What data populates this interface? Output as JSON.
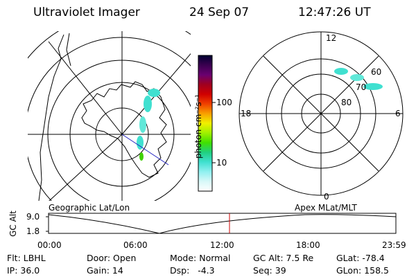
{
  "header": {
    "instrument": "Ultraviolet Imager",
    "date": "24 Sep 07",
    "time": "12:47:26 UT"
  },
  "colorbar": {
    "unit_label": "photon cm⁻²s⁻¹",
    "ticks": [
      "100",
      "10"
    ],
    "stops": [
      "#000030",
      "#3a0050",
      "#6a0070",
      "#a00020",
      "#d00000",
      "#f04000",
      "#f8a000",
      "#f0f000",
      "#a0f000",
      "#40e000",
      "#20d080",
      "#40e0d0",
      "#90f0f0",
      "#d8f8f8",
      "#ffffff"
    ]
  },
  "geo_panel": {
    "label": "Geographic Lat/Lon"
  },
  "apex_panel": {
    "label": "Apex MLat/MLT",
    "mlt_labels": {
      "top": "12",
      "left": "18",
      "right": "6",
      "bottom": "0"
    },
    "lat_labels": [
      "60",
      "70",
      "80"
    ]
  },
  "timeline": {
    "axis_label": "GC Alt",
    "y_labels": [
      "9.0",
      "1.8"
    ],
    "x_ticks": [
      "00:00",
      "06:00",
      "12:00",
      "18:00",
      "23:59"
    ],
    "marker_time": "12:47"
  },
  "info": {
    "flt": "Flt: LBHL",
    "ip": "IP: 36.0",
    "door": "Door: Open",
    "gain": "Gain: 14",
    "mode": "Mode: Normal",
    "dsp": "Dsp:   -4.3",
    "gcalt": "GC Alt: 7.5 Re",
    "seq": "Seq: 39",
    "glat": "GLat: -78.4",
    "glon": "GLon: 158.5"
  },
  "colors": {
    "aurora_cyan": "#40e0d0",
    "aurora_green": "#40d000",
    "marker": "#cc0000",
    "track_line": "#2020c0"
  }
}
